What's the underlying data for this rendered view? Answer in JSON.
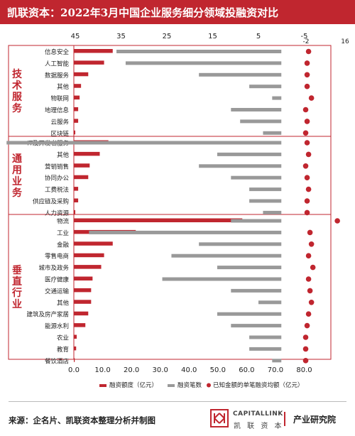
{
  "title": "凯联资本：2022年3月中国企业服务细分领域投融资对比",
  "source": "来源：企名片、凯联资本整理分析并制图",
  "brand": {
    "en": "CAPITALLINK",
    "cn": "凯 联 资 本",
    "dept": "产业研究院"
  },
  "colors": {
    "amount": "#c0262f",
    "count": "#999999",
    "avg": "#c0262f",
    "header": "#c0262f",
    "groupLabel": "#c0262f"
  },
  "chart_data": {
    "type": "bar",
    "top_axis": {
      "ticks": [
        45,
        35,
        25,
        15,
        5,
        -5
      ],
      "range": [
        45,
        -15
      ],
      "label_above": [
        -2,
        16
      ]
    },
    "bottom_axis": {
      "ticks": [
        "0.0",
        "10.0",
        "20.0",
        "30.0",
        "40.0",
        "50.0",
        "60.0",
        "70.0",
        "80.0"
      ],
      "range": [
        0,
        90
      ]
    },
    "legend": [
      "融资额度（亿元）",
      "融资笔数",
      "已知金额的单笔融资均额（亿元）"
    ],
    "groups": [
      {
        "name": "技术服务",
        "categories": [
          "信息安全",
          "人工智能",
          "数据服务",
          "其他",
          "物联网",
          "地理信息",
          "云服务",
          "区块链"
        ]
      },
      {
        "name": "通用业务",
        "categories": [
          "IT及开发者服务",
          "其他",
          "营销销售",
          "协同办公",
          "工费税法",
          "供应链及采购",
          "人力资源"
        ]
      },
      {
        "name": "垂直行业",
        "categories": [
          "物流",
          "工业",
          "金融",
          "零售电商",
          "城市及政务",
          "医疗健康",
          "交通运输",
          "其他",
          "建筑及房产家居",
          "能源水利",
          "农业",
          "教育",
          "餐饮酒店"
        ]
      }
    ],
    "series": [
      {
        "name": "融资额度（亿元）",
        "values": [
          13.5,
          10.5,
          5,
          2.5,
          2,
          1.5,
          1.5,
          0.5,
          12,
          9,
          5.5,
          5,
          1.5,
          1.5,
          0.5,
          58.5,
          21.5,
          13.5,
          10.5,
          9.5,
          6.5,
          6,
          6,
          5,
          4,
          1,
          0.8,
          0.3
        ]
      },
      {
        "name": "融资笔数",
        "values": [
          36,
          34,
          18,
          7,
          2,
          11,
          9,
          4,
          60,
          14,
          18,
          11,
          7,
          7,
          4,
          11,
          42,
          18,
          24,
          14,
          26,
          11,
          5,
          14,
          11,
          7,
          7,
          2
        ]
      },
      {
        "name": "已知金额的单笔融资均额（亿元）",
        "values": [
          81.5,
          81,
          81,
          81,
          82.5,
          80.5,
          81,
          80.5,
          81,
          81.5,
          80.5,
          81,
          81.5,
          81,
          81,
          91.5,
          82,
          82.5,
          81.5,
          83,
          81.5,
          82,
          82.5,
          81.5,
          81,
          80.5,
          80.5,
          80.5
        ]
      }
    ]
  }
}
